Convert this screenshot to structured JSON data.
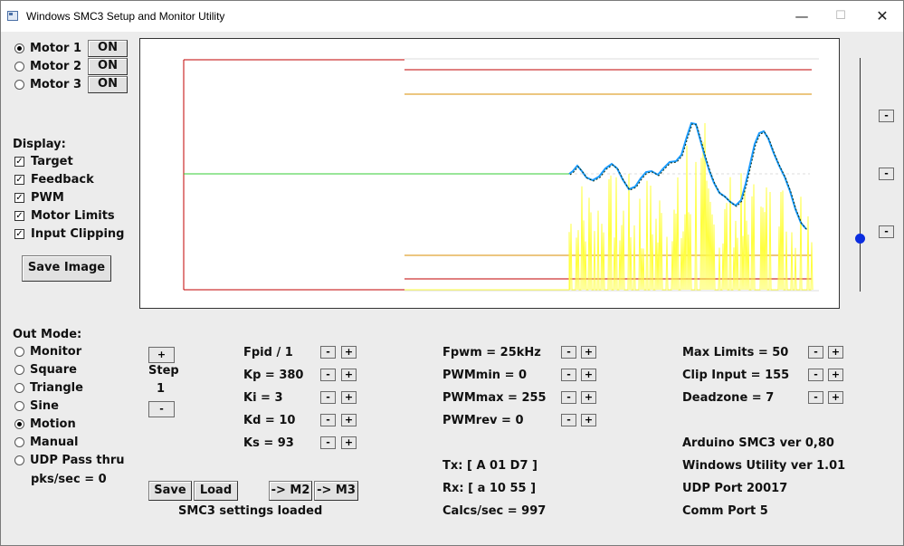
{
  "window": {
    "title": "Windows SMC3 Setup and Monitor Utility",
    "minimize": "—",
    "maximize": "☐",
    "close": "✕"
  },
  "motors": [
    {
      "label": "Motor 1",
      "button": "ON",
      "selected": true
    },
    {
      "label": "Motor 2",
      "button": "ON",
      "selected": false
    },
    {
      "label": "Motor 3",
      "button": "ON",
      "selected": false
    }
  ],
  "display": {
    "heading": "Display:",
    "options": [
      {
        "label": "Target",
        "checked": true
      },
      {
        "label": "Feedback",
        "checked": true
      },
      {
        "label": "PWM",
        "checked": true
      },
      {
        "label": "Motor Limits",
        "checked": true
      },
      {
        "label": "Input Clipping",
        "checked": true
      }
    ],
    "save_image": "Save Image"
  },
  "out_mode": {
    "heading": "Out Mode:",
    "options": [
      {
        "label": "Monitor",
        "selected": false
      },
      {
        "label": "Square",
        "selected": false
      },
      {
        "label": "Triangle",
        "selected": false
      },
      {
        "label": "Sine",
        "selected": false
      },
      {
        "label": "Motion",
        "selected": true
      },
      {
        "label": "Manual",
        "selected": false
      },
      {
        "label": "UDP Pass thru",
        "selected": false
      }
    ],
    "pks_sec": "pks/sec = 0"
  },
  "step": {
    "plus": "+",
    "label": "Step",
    "value": "1",
    "minus": "-"
  },
  "pid": [
    {
      "label": "Fpid / 1"
    },
    {
      "label": "Kp = 380"
    },
    {
      "label": "Ki = 3"
    },
    {
      "label": "Kd = 10"
    },
    {
      "label": "Ks = 93"
    }
  ],
  "pwm": [
    {
      "label": "Fpwm = 25kHz"
    },
    {
      "label": "PWMmin = 0"
    },
    {
      "label": "PWMmax = 255"
    },
    {
      "label": "PWMrev = 0"
    }
  ],
  "limits": [
    {
      "label": "Max Limits = 50"
    },
    {
      "label": "Clip Input = 155"
    },
    {
      "label": "Deadzone = 7"
    }
  ],
  "pm_labels": {
    "minus": "-",
    "plus": "+"
  },
  "io": {
    "tx": "Tx: [ A 01 D7 ]",
    "rx": "Rx: [ a 10 55 ]",
    "calcs": "Calcs/sec = 997"
  },
  "info": {
    "arduino": "Arduino SMC3 ver 0,80",
    "utility": "Windows Utility ver 1.01",
    "udp_port": "UDP Port 20017",
    "comm_port": "Comm Port 5"
  },
  "buttons": {
    "save": "Save",
    "load": "Load",
    "to_m2": "-> M2",
    "to_m3": "-> M3"
  },
  "status": "SMC3 settings loaded",
  "scroll_buttons": {
    "top": "-",
    "middle": "-",
    "bottom": "-"
  },
  "colors": {
    "limits": "#c00000",
    "clipping": "#d98c00",
    "target": "#1a9bff",
    "feedback": "#103010",
    "pwm": "#ffff40",
    "center": "#33cc33",
    "slider": "#0b2de0"
  },
  "slider_level": 0.23
}
